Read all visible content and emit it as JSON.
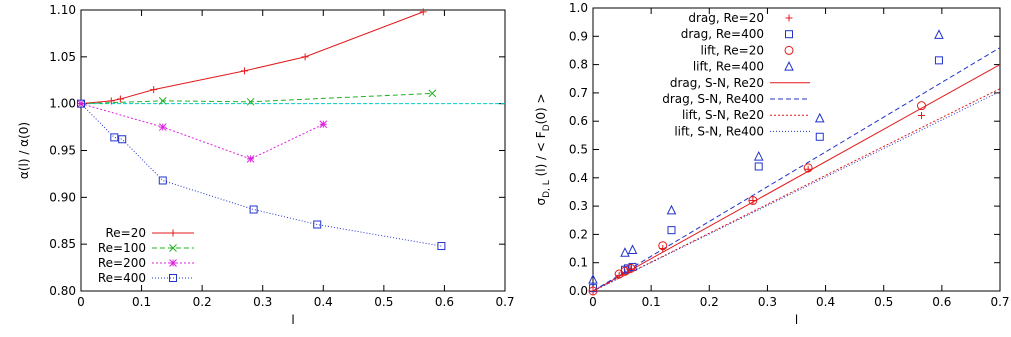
{
  "chart_data": [
    {
      "type": "line",
      "title": "",
      "xlabel": "l",
      "ylabel": "α(l) / α(0)",
      "xlim": [
        0,
        0.7
      ],
      "ylim": [
        0.8,
        1.1
      ],
      "xticks": [
        0,
        0.1,
        0.2,
        0.3,
        0.4,
        0.5,
        0.6,
        0.7
      ],
      "yticks": [
        0.8,
        0.85,
        0.9,
        0.95,
        1.0,
        1.05,
        1.1
      ],
      "xtick_labels": [
        "0",
        "0.1",
        "0.2",
        "0.3",
        "0.4",
        "0.5",
        "0.6",
        "0.7"
      ],
      "ytick_labels": [
        "0.80",
        "0.85",
        "0.90",
        "0.95",
        "1.00",
        "1.05",
        "1.10"
      ],
      "grid": false,
      "legend_position": "bottom-left",
      "reference_line": {
        "y": 1.0,
        "color": "#00cccc"
      },
      "series": [
        {
          "name": "Re=20",
          "color": "#e31a1c",
          "marker": "plus",
          "dash": "",
          "x": [
            0,
            0.05,
            0.065,
            0.12,
            0.27,
            0.37,
            0.565
          ],
          "y": [
            1.0,
            1.003,
            1.005,
            1.015,
            1.035,
            1.05,
            1.098
          ]
        },
        {
          "name": "Re=100",
          "color": "#22b322",
          "marker": "cross",
          "dash": "5,3",
          "x": [
            0,
            0.135,
            0.28,
            0.58
          ],
          "y": [
            1.0,
            1.003,
            1.002,
            1.011
          ]
        },
        {
          "name": "Re=200",
          "color": "#dd22dd",
          "marker": "star",
          "dash": "2,2",
          "x": [
            0,
            0.135,
            0.28,
            0.4
          ],
          "y": [
            1.0,
            0.975,
            0.941,
            0.978
          ]
        },
        {
          "name": "Re=400",
          "color": "#2233cc",
          "marker": "square",
          "dash": "1,2",
          "x": [
            0,
            0.055,
            0.068,
            0.135,
            0.285,
            0.39,
            0.595
          ],
          "y": [
            1.0,
            0.964,
            0.962,
            0.918,
            0.887,
            0.871,
            0.848
          ]
        }
      ]
    },
    {
      "type": "scatter",
      "title": "",
      "xlabel": "l",
      "ylabel": "σD, L (l) / < FD(0) >",
      "ylabel_parts": {
        "sigma": "σ",
        "sigma_sub": "D, L",
        "middle": " (l) / < F",
        "f_sub": "D",
        "end": "(0) >"
      },
      "xlim": [
        0,
        0.7
      ],
      "ylim": [
        0,
        1.0
      ],
      "xticks": [
        0,
        0.1,
        0.2,
        0.3,
        0.4,
        0.5,
        0.6,
        0.7
      ],
      "yticks": [
        0,
        0.1,
        0.2,
        0.3,
        0.4,
        0.5,
        0.6,
        0.7,
        0.8,
        0.9,
        1.0
      ],
      "xtick_labels": [
        "0",
        "0.1",
        "0.2",
        "0.3",
        "0.4",
        "0.5",
        "0.6",
        "0.7"
      ],
      "ytick_labels": [
        "0.0",
        "0.1",
        "0.2",
        "0.3",
        "0.4",
        "0.5",
        "0.6",
        "0.7",
        "0.8",
        "0.9",
        "1.0"
      ],
      "grid": false,
      "legend_position": "top-left",
      "points": [
        {
          "name": "drag, Re=20",
          "color": "#e31a1c",
          "marker": "plus",
          "x": [
            0,
            0.045,
            0.055,
            0.065,
            0.12,
            0.275,
            0.37,
            0.565
          ],
          "y": [
            0.0,
            0.055,
            0.065,
            0.075,
            0.15,
            0.32,
            0.43,
            0.62
          ]
        },
        {
          "name": "drag, Re=400",
          "color": "#2233cc",
          "marker": "square",
          "x": [
            0,
            0.055,
            0.06,
            0.068,
            0.135,
            0.285,
            0.39,
            0.595
          ],
          "y": [
            0.01,
            0.075,
            0.08,
            0.085,
            0.215,
            0.44,
            0.545,
            0.815
          ]
        },
        {
          "name": "lift, Re=20",
          "color": "#e31a1c",
          "marker": "circle",
          "x": [
            0,
            0.045,
            0.055,
            0.065,
            0.12,
            0.275,
            0.37,
            0.565
          ],
          "y": [
            0.0,
            0.06,
            0.07,
            0.08,
            0.16,
            0.32,
            0.435,
            0.655
          ]
        },
        {
          "name": "lift, Re=400",
          "color": "#2233cc",
          "marker": "triangle",
          "x": [
            0,
            0.055,
            0.068,
            0.135,
            0.285,
            0.39,
            0.595
          ],
          "y": [
            0.04,
            0.135,
            0.145,
            0.285,
            0.475,
            0.61,
            0.905
          ]
        }
      ],
      "lines": [
        {
          "name": "drag, S-N, Re20",
          "color": "#e31a1c",
          "dash": "",
          "x": [
            0,
            0.7
          ],
          "y": [
            0.0,
            0.8
          ]
        },
        {
          "name": "drag, S-N, Re400",
          "color": "#2233cc",
          "dash": "5,3",
          "x": [
            0,
            0.7
          ],
          "y": [
            0.0,
            0.86
          ]
        },
        {
          "name": "lift, S-N, Re20",
          "color": "#e31a1c",
          "dash": "2,2",
          "x": [
            0,
            0.7
          ],
          "y": [
            0.0,
            0.715
          ]
        },
        {
          "name": "lift, S-N, Re400",
          "color": "#2233cc",
          "dash": "1,2",
          "x": [
            0,
            0.7
          ],
          "y": [
            0.0,
            0.705
          ]
        }
      ]
    }
  ]
}
